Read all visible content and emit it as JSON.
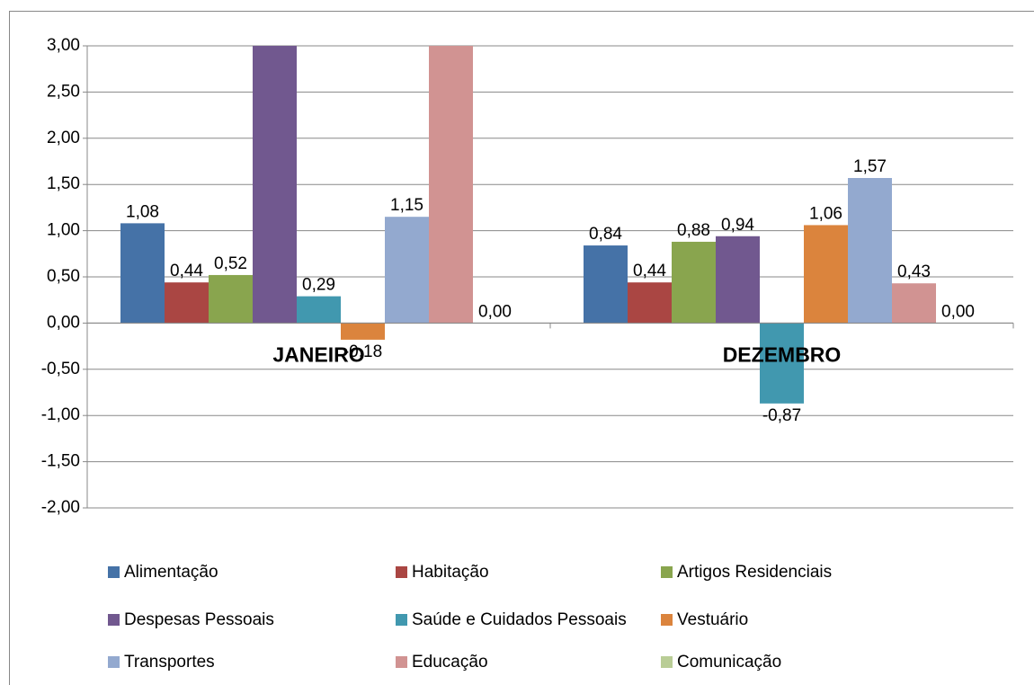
{
  "chart_data": {
    "type": "bar",
    "categories": [
      "JANEIRO",
      "DEZEMBRO"
    ],
    "series": [
      {
        "name": "Alimentação",
        "color": "#4572a7",
        "values": [
          1.08,
          0.84
        ],
        "value_labels": [
          "1,08",
          "0,84"
        ]
      },
      {
        "name": "Habitação",
        "color": "#aa4643",
        "values": [
          0.44,
          0.44
        ],
        "value_labels": [
          "0,44",
          "0,44"
        ]
      },
      {
        "name": "Artigos Residenciais",
        "color": "#89a54e",
        "values": [
          0.52,
          0.88
        ],
        "value_labels": [
          "0,52",
          "0,88"
        ]
      },
      {
        "name": "Despesas Pessoais",
        "color": "#71588f",
        "values": [
          3.0,
          0.94
        ],
        "value_labels": [
          null,
          "0,94"
        ]
      },
      {
        "name": "Saúde e Cuidados Pessoais",
        "color": "#4198af",
        "values": [
          0.29,
          -0.87
        ],
        "value_labels": [
          "0,29",
          "-0,87"
        ]
      },
      {
        "name": "Vestuário",
        "color": "#db843d",
        "values": [
          -0.18,
          1.06
        ],
        "value_labels": [
          "-0,18",
          "1,06"
        ]
      },
      {
        "name": "Transportes",
        "color": "#93a9cf",
        "values": [
          1.15,
          1.57
        ],
        "value_labels": [
          "1,15",
          "1,57"
        ]
      },
      {
        "name": "Educação",
        "color": "#d19392",
        "values": [
          3.0,
          0.43
        ],
        "value_labels": [
          null,
          "0,43"
        ]
      },
      {
        "name": "Comunicação",
        "color": "#b9cd96",
        "values": [
          0.0,
          0.0
        ],
        "value_labels": [
          "0,00",
          "0,00"
        ]
      }
    ],
    "ylim": [
      -2,
      3
    ],
    "yticks": [
      {
        "value": -2,
        "label": "-2,00"
      },
      {
        "value": -1.5,
        "label": "-1,50"
      },
      {
        "value": -1,
        "label": "-1,00"
      },
      {
        "value": -0.5,
        "label": "-0,50"
      },
      {
        "value": 0,
        "label": "0,00"
      },
      {
        "value": 0.5,
        "label": "0,50"
      },
      {
        "value": 1,
        "label": "1,00"
      },
      {
        "value": 1.5,
        "label": "1,50"
      },
      {
        "value": 2,
        "label": "2,00"
      },
      {
        "value": 2.5,
        "label": "2,50"
      },
      {
        "value": 3,
        "label": "3,00"
      }
    ],
    "grid": true,
    "legend": "bottom"
  }
}
